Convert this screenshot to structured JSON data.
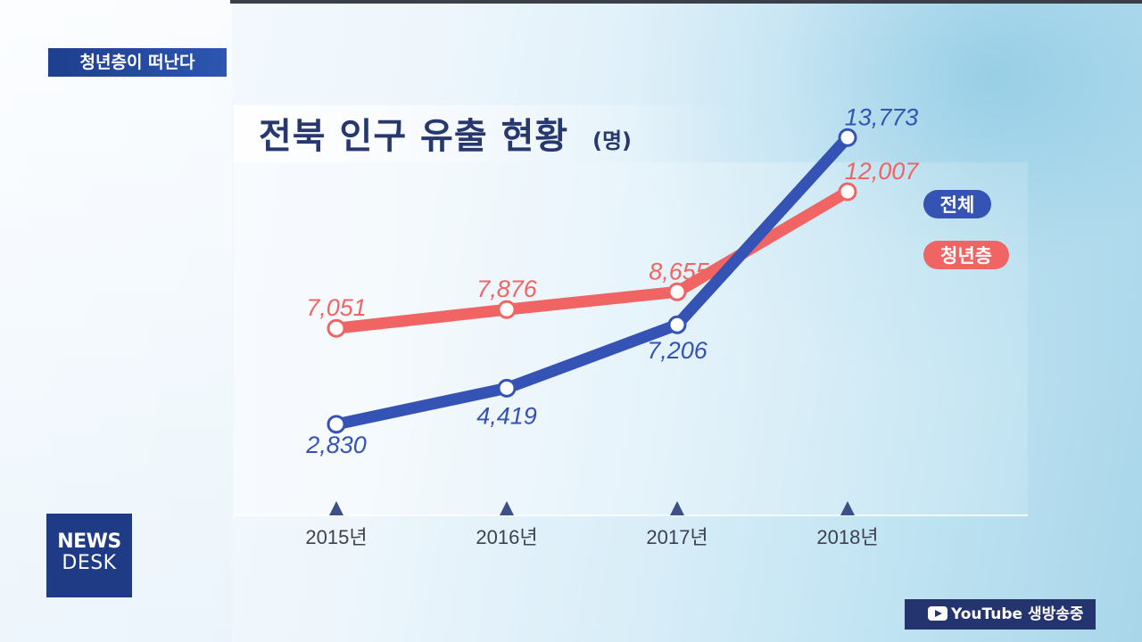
{
  "header": {
    "tag": "청년층이 떠난다"
  },
  "title": {
    "main": "전북 인구 유출 현황",
    "unit": "(명)"
  },
  "chart_data": {
    "type": "line",
    "title": "전북 인구 유출 현황",
    "unit": "(명)",
    "categories": [
      "2015년",
      "2016년",
      "2017년",
      "2018년"
    ],
    "series": [
      {
        "name": "전체",
        "values": [
          2830,
          4419,
          7206,
          13773
        ],
        "labels": [
          "2,830",
          "4,419",
          "7,206",
          "13,773"
        ],
        "color": "#3453b4"
      },
      {
        "name": "청년층",
        "values": [
          7051,
          7876,
          8655,
          12007
        ],
        "labels": [
          "7,051",
          "7,876",
          "8,655",
          "12,007"
        ],
        "color": "#f06464"
      }
    ]
  },
  "logo": {
    "line1": "NEWS",
    "line2": "DESK"
  },
  "badge": {
    "text": "YouTube 생방송중",
    "icon": "play-icon"
  }
}
